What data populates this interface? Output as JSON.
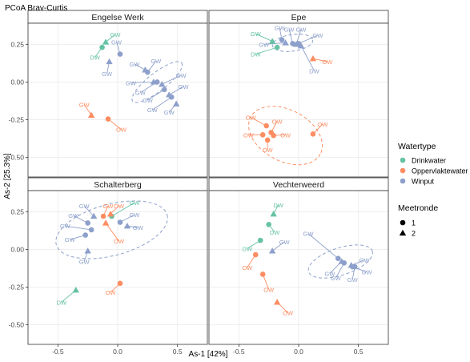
{
  "title": "PCoA Bray-Curtis",
  "axes": {
    "xlabel": "As-1 [42%]",
    "ylabel": "As-2 [25.3%]"
  },
  "legend": {
    "color_title": "Watertype",
    "color_entries": [
      {
        "label": "Drinkwater",
        "color": "#66c2a5"
      },
      {
        "label": "Oppervlaktewater",
        "color": "#fc8d62"
      },
      {
        "label": "Winput",
        "color": "#8da0cb"
      }
    ],
    "shape_title": "Meetronde",
    "shape_entries": [
      {
        "label": "1",
        "shape": "circle"
      },
      {
        "label": "2",
        "shape": "triangle"
      }
    ]
  },
  "chart_data": {
    "type": "scatter",
    "title": "PCoA Bray-Curtis",
    "xlabel": "As-1 [42%]",
    "ylabel": "As-2 [25.3%]",
    "xlim": [
      -0.75,
      0.75
    ],
    "ylim": [
      -0.63,
      0.39
    ],
    "xticks": [
      -0.5,
      0.0,
      0.5
    ],
    "xtick_labels": [
      "-0.5",
      "0.0",
      "0.5"
    ],
    "yticks": [
      0.25,
      0.0,
      -0.25,
      -0.5
    ],
    "ytick_labels": [
      "0.25",
      "0.00",
      "-0.25",
      "-0.50"
    ],
    "grid": true,
    "legend_position": "right",
    "colors": {
      "Drinkwater": "#66c2a5",
      "Oppervlaktewater": "#fc8d62",
      "Winput": "#8da0cb"
    },
    "panels": [
      {
        "name": "Engelse Werk",
        "ellipses": [
          {
            "group": "Winput",
            "cx": 0.33,
            "cy": 0.0,
            "rx": 0.26,
            "ry": 0.06,
            "angle_deg": -38
          }
        ],
        "points": [
          {
            "x": -0.1,
            "y": 0.265,
            "type": "Drinkwater",
            "round": 2,
            "label": "GW",
            "lx": -0.02,
            "ly": 0.315
          },
          {
            "x": -0.13,
            "y": 0.23,
            "type": "Drinkwater",
            "round": 1,
            "label": "DW",
            "lx": -0.19,
            "ly": 0.165
          },
          {
            "x": -0.07,
            "y": 0.135,
            "type": "Winput",
            "round": 2,
            "label": "GW",
            "lx": -0.09,
            "ly": 0.055
          },
          {
            "x": 0.02,
            "y": 0.185,
            "type": "Winput",
            "round": 1,
            "label": "GW",
            "lx": -0.01,
            "ly": 0.265
          },
          {
            "x": 0.23,
            "y": 0.08,
            "type": "Winput",
            "round": 2,
            "label": "GW",
            "lx": 0.14,
            "ly": 0.12
          },
          {
            "x": 0.25,
            "y": 0.065,
            "type": "Winput",
            "round": 1,
            "label": "GW",
            "lx": 0.32,
            "ly": 0.14
          },
          {
            "x": 0.3,
            "y": 0.0,
            "type": "Winput",
            "round": 2,
            "label": "GW",
            "lx": 0.11,
            "ly": -0.005
          },
          {
            "x": 0.33,
            "y": 0.0,
            "type": "Winput",
            "round": 1,
            "label": "GW",
            "lx": 0.19,
            "ly": -0.07
          },
          {
            "x": 0.37,
            "y": -0.015,
            "type": "Winput",
            "round": 2,
            "label": "GW",
            "lx": 0.53,
            "ly": 0.045
          },
          {
            "x": 0.39,
            "y": -0.05,
            "type": "Winput",
            "round": 1,
            "label": "GW",
            "lx": 0.25,
            "ly": -0.12
          },
          {
            "x": 0.43,
            "y": -0.085,
            "type": "Winput",
            "round": 2,
            "label": "GW",
            "lx": 0.55,
            "ly": -0.03
          },
          {
            "x": 0.45,
            "y": -0.1,
            "type": "Winput",
            "round": 1,
            "label": "GW",
            "lx": 0.29,
            "ly": -0.185
          },
          {
            "x": 0.49,
            "y": -0.145,
            "type": "Winput",
            "round": 2,
            "label": "GW",
            "lx": 0.43,
            "ly": -0.2
          },
          {
            "x": -0.22,
            "y": -0.22,
            "type": "Oppervlaktewater",
            "round": 2,
            "label": "GW",
            "lx": -0.28,
            "ly": -0.15
          },
          {
            "x": -0.08,
            "y": -0.245,
            "type": "Oppervlaktewater",
            "round": 1,
            "label": "OW",
            "lx": 0.03,
            "ly": -0.315
          }
        ]
      },
      {
        "name": "Epe",
        "ellipses": [
          {
            "group": "Winput",
            "cx": -0.05,
            "cy": 0.26,
            "rx": 0.17,
            "ry": 0.055,
            "angle_deg": -8
          },
          {
            "group": "Oppervlaktewater",
            "cx": -0.11,
            "cy": -0.355,
            "rx": 0.33,
            "ry": 0.17,
            "angle_deg": 28
          }
        ],
        "points": [
          {
            "x": -0.22,
            "y": 0.27,
            "type": "Drinkwater",
            "round": 2,
            "label": "GW",
            "lx": -0.36,
            "ly": 0.32
          },
          {
            "x": -0.18,
            "y": 0.23,
            "type": "Drinkwater",
            "round": 1,
            "label": "DW",
            "lx": -0.36,
            "ly": 0.185
          },
          {
            "x": -0.14,
            "y": 0.28,
            "type": "Winput",
            "round": 1,
            "label": "GW",
            "lx": -0.16,
            "ly": 0.36
          },
          {
            "x": -0.11,
            "y": 0.26,
            "type": "Winput",
            "round": 2,
            "label": "GW",
            "lx": -0.29,
            "ly": 0.25
          },
          {
            "x": -0.05,
            "y": 0.255,
            "type": "Winput",
            "round": 1,
            "label": "GW",
            "lx": -0.08,
            "ly": 0.35
          },
          {
            "x": -0.02,
            "y": 0.25,
            "type": "Winput",
            "round": 2,
            "label": "GW",
            "lx": 0.02,
            "ly": 0.35
          },
          {
            "x": 0.0,
            "y": 0.255,
            "type": "Winput",
            "round": 1,
            "label": "GW",
            "lx": 0.16,
            "ly": 0.31
          },
          {
            "x": 0.02,
            "y": 0.24,
            "type": "Winput",
            "round": 2,
            "label": "DW",
            "lx": 0.13,
            "ly": 0.075
          },
          {
            "x": 0.12,
            "y": 0.155,
            "type": "Oppervlaktewater",
            "round": 2,
            "label": "OW",
            "lx": 0.24,
            "ly": 0.135
          },
          {
            "x": 0.12,
            "y": -0.345,
            "type": "Oppervlaktewater",
            "round": 1,
            "label": "OW",
            "lx": 0.2,
            "ly": -0.28
          },
          {
            "x": -0.27,
            "y": -0.29,
            "type": "Oppervlaktewater",
            "round": 1,
            "label": "OW",
            "lx": -0.4,
            "ly": -0.235
          },
          {
            "x": -0.23,
            "y": -0.335,
            "type": "Oppervlaktewater",
            "round": 1,
            "label": "OW",
            "lx": -0.18,
            "ly": -0.26
          },
          {
            "x": -0.3,
            "y": -0.35,
            "type": "Oppervlaktewater",
            "round": 1,
            "label": "OW",
            "lx": -0.42,
            "ly": -0.35
          },
          {
            "x": -0.26,
            "y": -0.385,
            "type": "Oppervlaktewater",
            "round": 1,
            "label": "OW",
            "lx": -0.26,
            "ly": -0.45
          },
          {
            "x": -0.21,
            "y": -0.355,
            "type": "Oppervlaktewater",
            "round": 1,
            "label": "OW",
            "lx": -0.11,
            "ly": -0.35
          }
        ]
      },
      {
        "name": "Schalterberg",
        "ellipses": [
          {
            "group": "Winput",
            "cx": -0.05,
            "cy": 0.13,
            "rx": 0.48,
            "ry": 0.17,
            "angle_deg": -15
          }
        ],
        "points": [
          {
            "x": -0.2,
            "y": 0.22,
            "type": "Winput",
            "round": 2,
            "label": "GW",
            "lx": -0.28,
            "ly": 0.29
          },
          {
            "x": -0.12,
            "y": 0.22,
            "type": "Oppervlaktewater",
            "round": 1,
            "label": "GW",
            "lx": -0.08,
            "ly": 0.29
          },
          {
            "x": -0.05,
            "y": 0.22,
            "type": "Drinkwater",
            "round": 1,
            "label": "GW",
            "lx": 0.14,
            "ly": 0.31
          },
          {
            "x": -0.06,
            "y": 0.235,
            "type": "Oppervlaktewater",
            "round": 2,
            "label": "OW",
            "lx": 0.01,
            "ly": 0.29
          },
          {
            "x": -0.1,
            "y": 0.175,
            "type": "Oppervlaktewater",
            "round": 2,
            "label": "OW",
            "lx": 0.01,
            "ly": 0.055
          },
          {
            "x": 0.02,
            "y": 0.18,
            "type": "Winput",
            "round": 1,
            "label": "GW",
            "lx": 0.14,
            "ly": 0.23
          },
          {
            "x": -0.25,
            "y": 0.175,
            "type": "Winput",
            "round": 1,
            "label": "GW",
            "lx": -0.37,
            "ly": 0.225
          },
          {
            "x": 0.08,
            "y": 0.155,
            "type": "Winput",
            "round": 2,
            "label": "GW",
            "lx": 0.17,
            "ly": 0.145
          },
          {
            "x": -0.22,
            "y": 0.13,
            "type": "Winput",
            "round": 1,
            "label": "GW",
            "lx": -0.44,
            "ly": 0.155
          },
          {
            "x": -0.27,
            "y": 0.095,
            "type": "Winput",
            "round": 1,
            "label": "GW",
            "lx": -0.4,
            "ly": 0.065
          },
          {
            "x": -0.25,
            "y": -0.01,
            "type": "Winput",
            "round": 2,
            "label": "GW",
            "lx": -0.28,
            "ly": -0.08
          },
          {
            "x": -0.35,
            "y": -0.27,
            "type": "Drinkwater",
            "round": 2,
            "label": "DW",
            "lx": -0.47,
            "ly": -0.35
          },
          {
            "x": 0.02,
            "y": -0.225,
            "type": "Oppervlaktewater",
            "round": 1,
            "label": "OW",
            "lx": -0.06,
            "ly": -0.285
          }
        ]
      },
      {
        "name": "Vechterweerd",
        "ellipses": [
          {
            "group": "Winput",
            "cx": 0.35,
            "cy": -0.08,
            "rx": 0.28,
            "ry": 0.09,
            "angle_deg": -18
          }
        ],
        "points": [
          {
            "x": -0.21,
            "y": 0.235,
            "type": "Drinkwater",
            "round": 2,
            "label": "DW",
            "lx": -0.17,
            "ly": 0.295
          },
          {
            "x": -0.25,
            "y": 0.165,
            "type": "Drinkwater",
            "round": 1,
            "label": "DW",
            "lx": -0.2,
            "ly": 0.115
          },
          {
            "x": -0.32,
            "y": 0.06,
            "type": "Drinkwater",
            "round": 1,
            "label": "DW",
            "lx": -0.43,
            "ly": 0.005
          },
          {
            "x": -0.22,
            "y": -0.01,
            "type": "Winput",
            "round": 2,
            "label": "GW",
            "lx": -0.12,
            "ly": 0.05
          },
          {
            "x": -0.36,
            "y": -0.035,
            "type": "Oppervlaktewater",
            "round": 1,
            "label": "OW",
            "lx": -0.43,
            "ly": -0.12
          },
          {
            "x": -0.3,
            "y": -0.165,
            "type": "Oppervlaktewater",
            "round": 1,
            "label": "OW",
            "lx": -0.25,
            "ly": -0.265
          },
          {
            "x": -0.18,
            "y": -0.35,
            "type": "Oppervlaktewater",
            "round": 2,
            "label": "OW",
            "lx": -0.09,
            "ly": -0.42
          },
          {
            "x": 0.33,
            "y": -0.06,
            "type": "Winput",
            "round": 1,
            "label": "GW",
            "lx": 0.08,
            "ly": 0.105
          },
          {
            "x": 0.36,
            "y": -0.08,
            "type": "Winput",
            "round": 2,
            "label": "GW",
            "lx": 0.26,
            "ly": -0.16
          },
          {
            "x": 0.38,
            "y": -0.09,
            "type": "Winput",
            "round": 1,
            "label": "GW",
            "lx": 0.31,
            "ly": -0.19
          },
          {
            "x": 0.44,
            "y": -0.105,
            "type": "Winput",
            "round": 2,
            "label": "GW",
            "lx": 0.55,
            "ly": -0.07
          },
          {
            "x": 0.45,
            "y": -0.115,
            "type": "Winput",
            "round": 1,
            "label": "GW",
            "lx": 0.57,
            "ly": -0.15
          },
          {
            "x": 0.47,
            "y": -0.115,
            "type": "Winput",
            "round": 1,
            "label": "GW",
            "lx": 0.45,
            "ly": -0.2
          }
        ]
      }
    ]
  }
}
